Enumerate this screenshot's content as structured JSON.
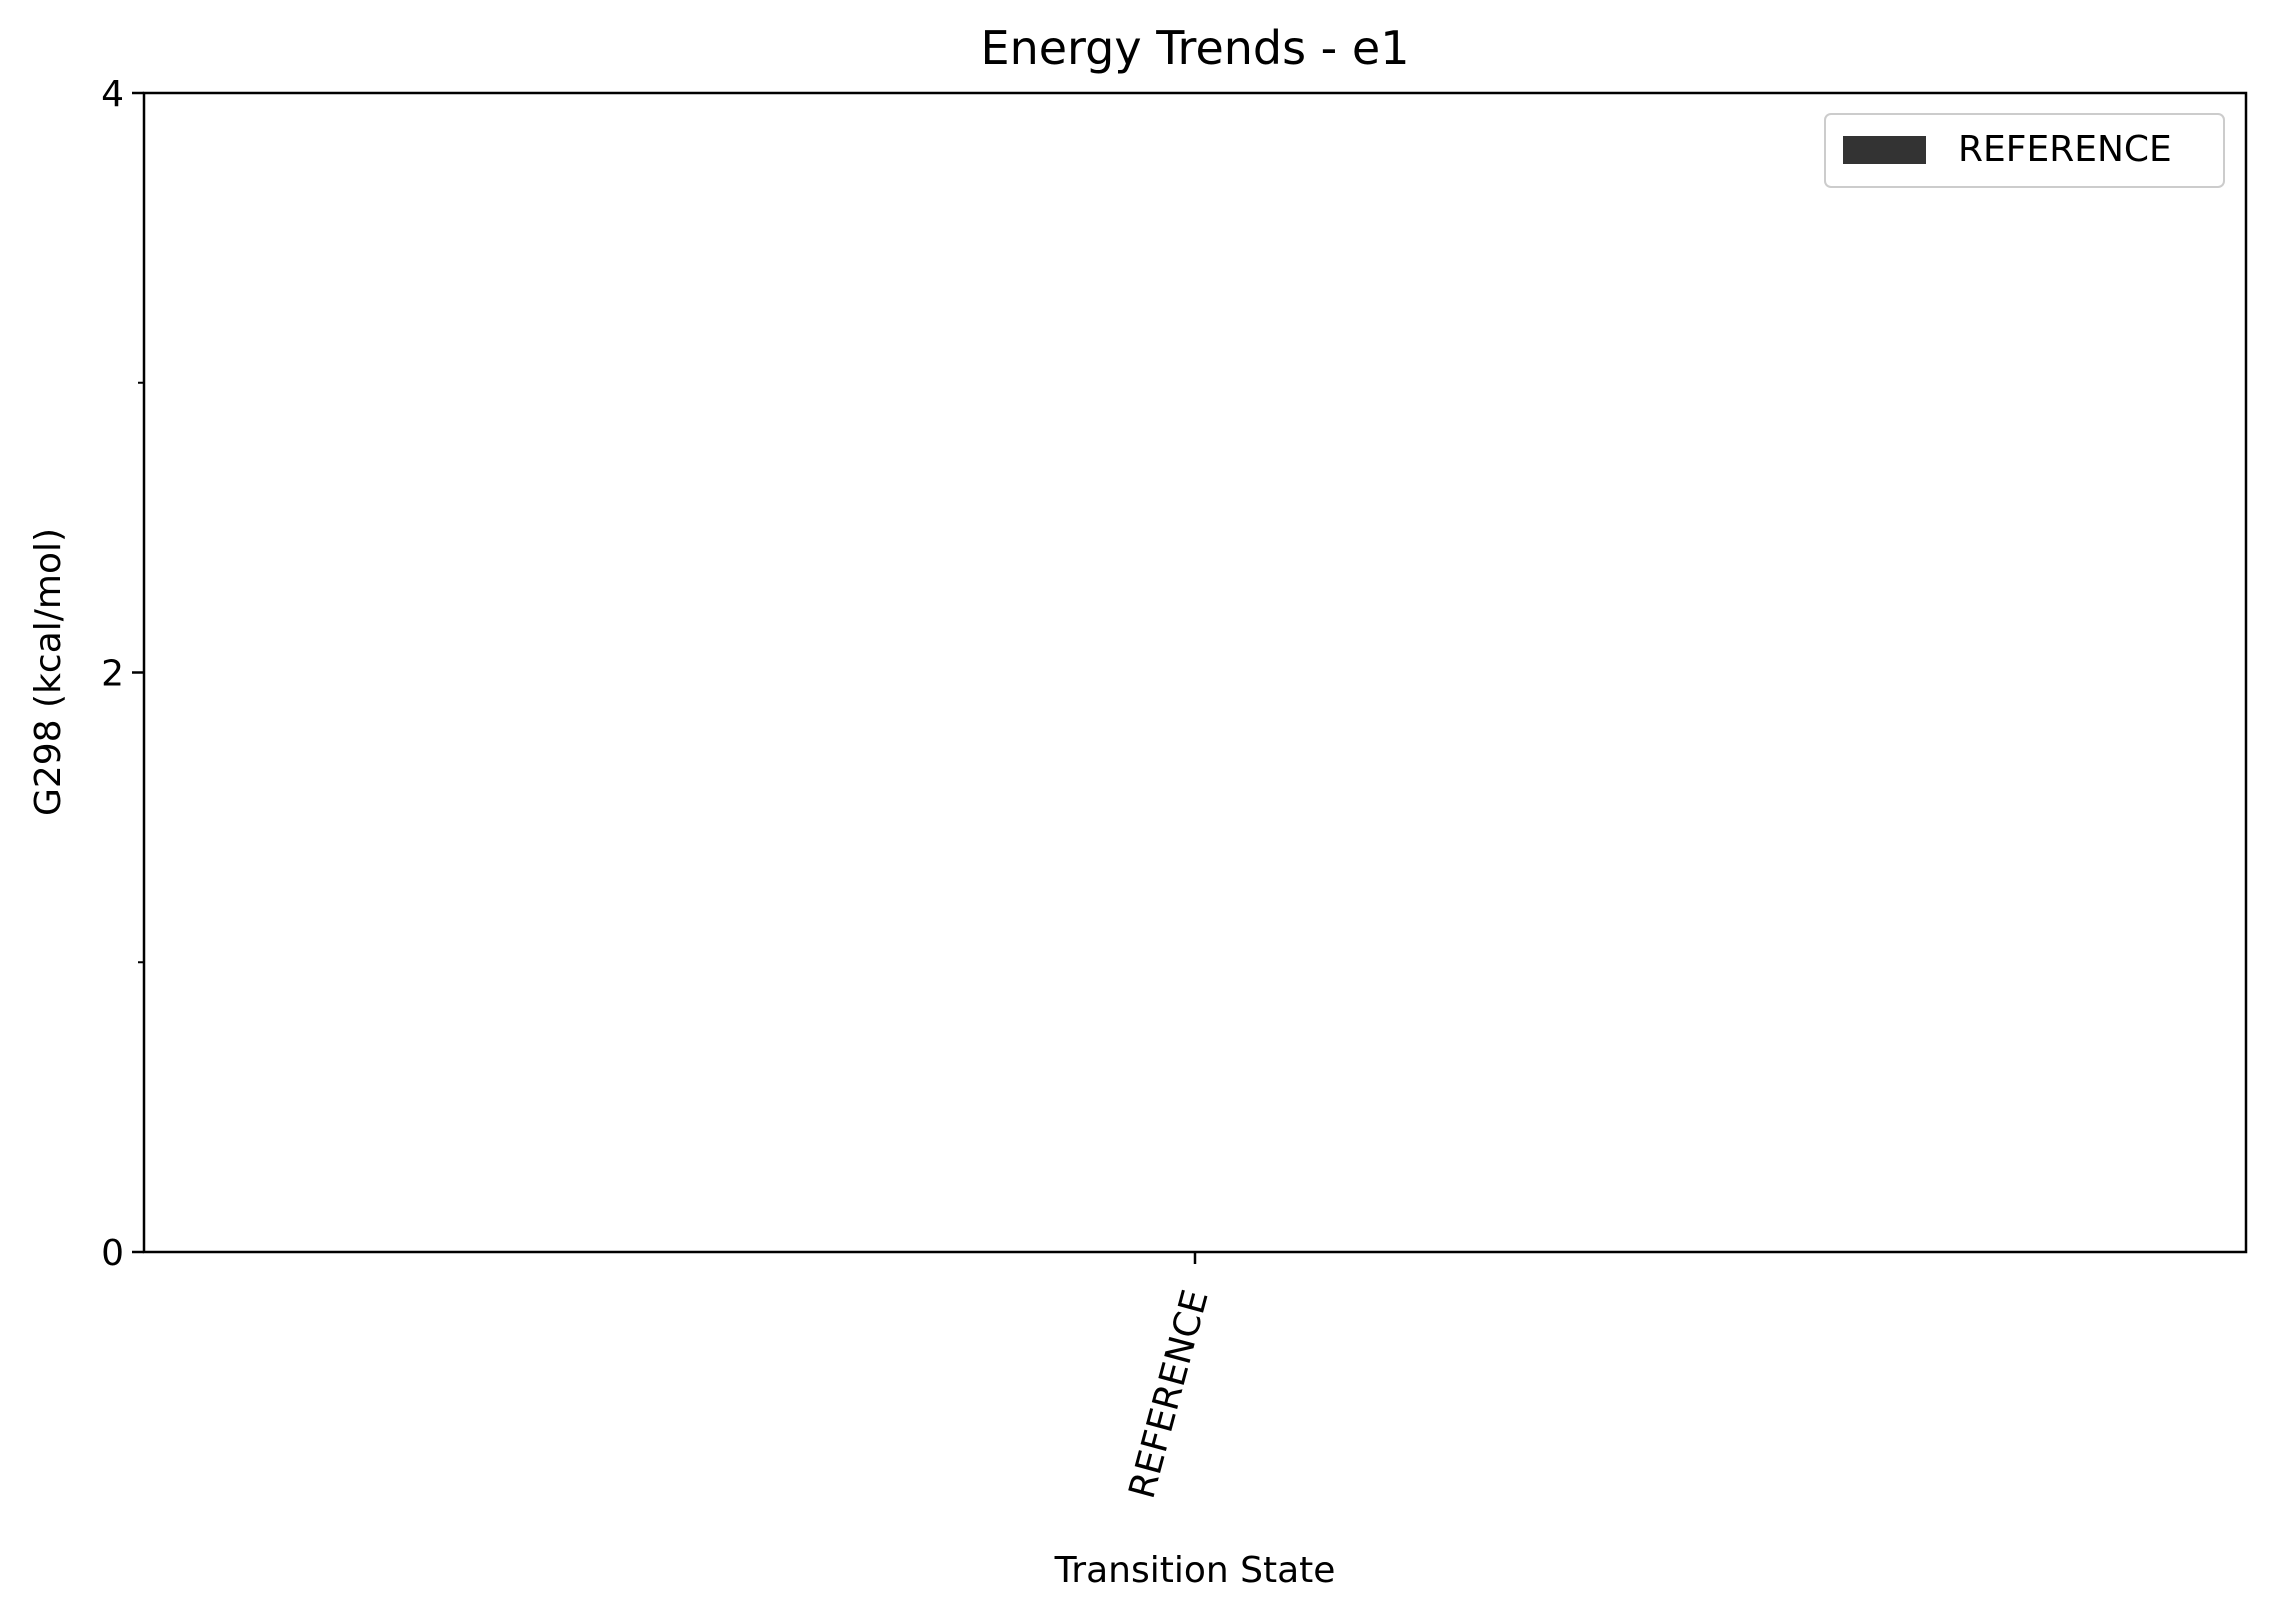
{
  "chart_data": {
    "type": "bar",
    "title": "Energy Trends - e1",
    "xlabel": "Transition State",
    "ylabel": "G298 (kcal/mol)",
    "categories": [
      "REFERENCE"
    ],
    "series": [
      {
        "name": "REFERENCE",
        "values": [
          0
        ],
        "color": "#333333"
      }
    ],
    "ylim": [
      0,
      4
    ],
    "yticks": [
      0,
      2,
      4
    ],
    "yticks_minor": [
      1,
      3
    ],
    "grid": false,
    "legend": {
      "position": "top-right",
      "entries": [
        "REFERENCE"
      ]
    }
  }
}
